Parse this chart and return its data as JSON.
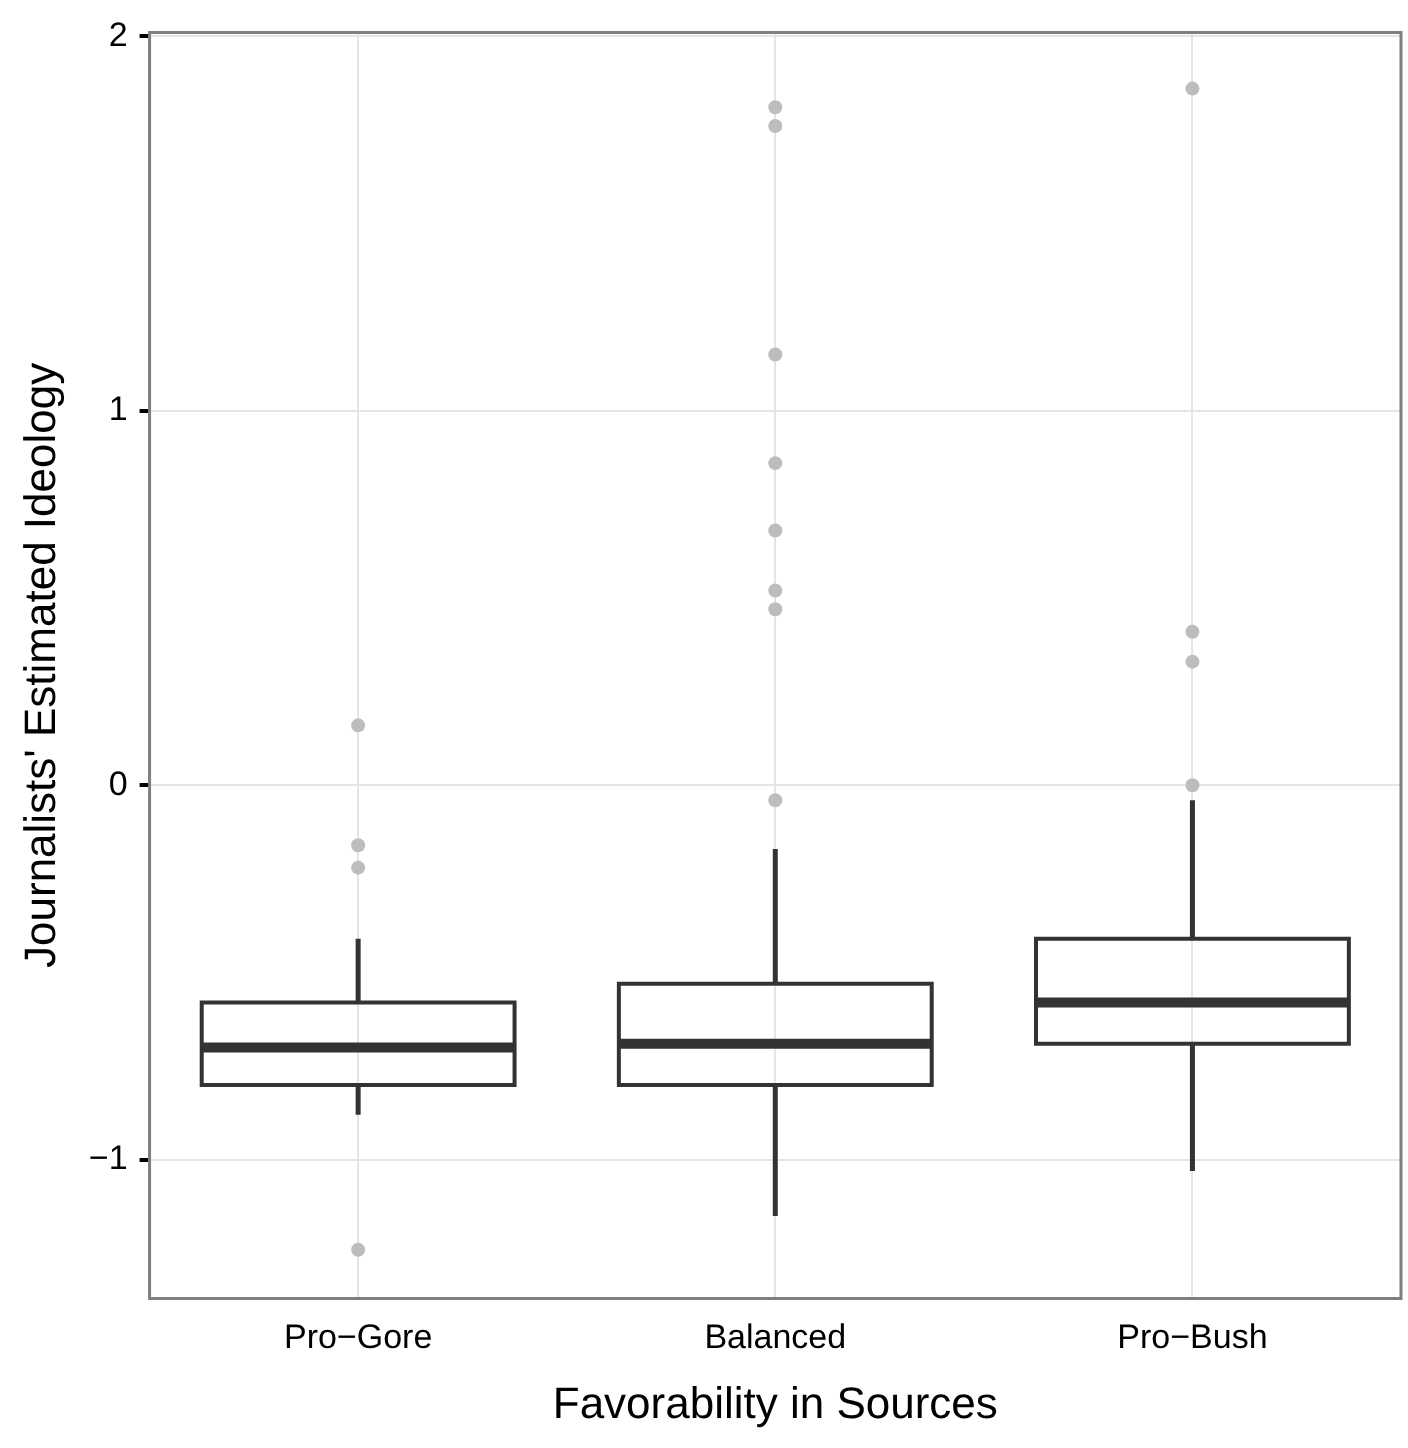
{
  "chart_data": {
    "type": "box",
    "xlabel": "Favorability in Sources",
    "ylabel": "Journalists' Estimated Ideology",
    "categories": [
      "Pro−Gore",
      "Balanced",
      "Pro−Bush"
    ],
    "boxes": [
      {
        "low": -0.88,
        "q1": -0.8,
        "median": -0.7,
        "q3": -0.58,
        "high": -0.41,
        "outliers": [
          0.16,
          -0.16,
          -0.22,
          -1.24
        ]
      },
      {
        "low": -1.15,
        "q1": -0.8,
        "median": -0.69,
        "q3": -0.53,
        "high": -0.17,
        "outliers": [
          1.81,
          1.76,
          1.15,
          0.86,
          0.68,
          0.52,
          0.47,
          -0.04
        ]
      },
      {
        "low": -1.03,
        "q1": -0.69,
        "median": -0.58,
        "q3": -0.41,
        "high": -0.04,
        "outliers": [
          1.86,
          0.41,
          0.33,
          0
        ]
      }
    ],
    "color": "#333333",
    "ylim": [
      -1.37,
      2.01
    ],
    "yticks": [
      -1,
      0,
      1,
      2
    ],
    "grid": true,
    "legend": false
  }
}
